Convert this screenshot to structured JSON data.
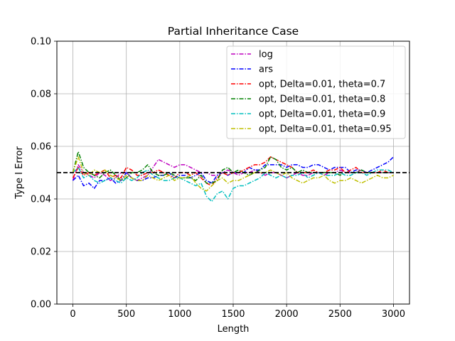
{
  "chart_data": {
    "type": "line",
    "title": "Partial Inheritance Case",
    "xlabel": "Length",
    "ylabel": "Type I Error",
    "xlim": [
      -150,
      3150
    ],
    "ylim": [
      0,
      0.1
    ],
    "xticks": [
      0,
      500,
      1000,
      1500,
      2000,
      2500,
      3000
    ],
    "xtick_labels": [
      "0",
      "500",
      "1000",
      "1500",
      "2000",
      "2500",
      "3000"
    ],
    "yticks": [
      0,
      0.02,
      0.04,
      0.06,
      0.08,
      0.1
    ],
    "ytick_labels": [
      "0.00",
      "0.02",
      "0.04",
      "0.06",
      "0.08",
      "0.10"
    ],
    "grid": true,
    "legend_position": "top-right",
    "reference_line": {
      "y": 0.05,
      "style": "dashed",
      "color": "#000000"
    },
    "x": [
      0,
      50,
      100,
      150,
      200,
      250,
      300,
      350,
      400,
      450,
      500,
      550,
      600,
      650,
      700,
      750,
      800,
      850,
      900,
      950,
      1000,
      1050,
      1100,
      1150,
      1200,
      1250,
      1300,
      1350,
      1400,
      1450,
      1500,
      1550,
      1600,
      1650,
      1700,
      1750,
      1800,
      1850,
      1900,
      1950,
      2000,
      2050,
      2100,
      2150,
      2200,
      2250,
      2300,
      2350,
      2400,
      2450,
      2500,
      2550,
      2600,
      2650,
      2700,
      2750,
      2800,
      2850,
      2900,
      2950,
      3000
    ],
    "series": [
      {
        "name": "log",
        "color": "#bf00bf",
        "values": [
          0.047,
          0.053,
          0.05,
          0.049,
          0.048,
          0.05,
          0.049,
          0.047,
          0.048,
          0.05,
          0.05,
          0.048,
          0.047,
          0.048,
          0.049,
          0.052,
          0.055,
          0.054,
          0.053,
          0.052,
          0.053,
          0.053,
          0.052,
          0.051,
          0.05,
          0.05,
          0.049,
          0.049,
          0.05,
          0.051,
          0.05,
          0.049,
          0.05,
          0.05,
          0.051,
          0.05,
          0.049,
          0.05,
          0.05,
          0.049,
          0.048,
          0.049,
          0.05,
          0.049,
          0.049,
          0.05,
          0.05,
          0.049,
          0.05,
          0.05,
          0.051,
          0.05,
          0.05,
          0.05,
          0.051,
          0.05,
          0.05,
          0.05,
          0.05,
          0.05,
          0.05
        ]
      },
      {
        "name": "ars",
        "color": "#0000ff",
        "values": [
          0.047,
          0.049,
          0.045,
          0.046,
          0.044,
          0.047,
          0.047,
          0.048,
          0.046,
          0.047,
          0.05,
          0.048,
          0.047,
          0.047,
          0.048,
          0.048,
          0.049,
          0.049,
          0.05,
          0.048,
          0.049,
          0.049,
          0.048,
          0.049,
          0.05,
          0.047,
          0.046,
          0.049,
          0.05,
          0.049,
          0.05,
          0.05,
          0.05,
          0.052,
          0.051,
          0.051,
          0.053,
          0.053,
          0.053,
          0.053,
          0.052,
          0.053,
          0.053,
          0.052,
          0.052,
          0.053,
          0.053,
          0.052,
          0.051,
          0.052,
          0.052,
          0.052,
          0.05,
          0.051,
          0.051,
          0.05,
          0.051,
          0.052,
          0.053,
          0.054,
          0.056
        ]
      },
      {
        "name": "opt, Delta=0.01, theta=0.7",
        "color": "#ff0000",
        "values": [
          0.048,
          0.052,
          0.049,
          0.05,
          0.049,
          0.05,
          0.051,
          0.048,
          0.049,
          0.048,
          0.052,
          0.051,
          0.049,
          0.049,
          0.05,
          0.05,
          0.051,
          0.05,
          0.049,
          0.048,
          0.05,
          0.05,
          0.049,
          0.05,
          0.048,
          0.046,
          0.045,
          0.048,
          0.05,
          0.049,
          0.05,
          0.05,
          0.051,
          0.052,
          0.053,
          0.053,
          0.054,
          0.056,
          0.055,
          0.054,
          0.053,
          0.052,
          0.05,
          0.05,
          0.05,
          0.051,
          0.05,
          0.05,
          0.051,
          0.051,
          0.052,
          0.05,
          0.051,
          0.052,
          0.05,
          0.05,
          0.05,
          0.05,
          0.051,
          0.05,
          0.05
        ]
      },
      {
        "name": "opt, Delta=0.01, theta=0.8",
        "color": "#008000",
        "values": [
          0.05,
          0.058,
          0.052,
          0.05,
          0.049,
          0.048,
          0.05,
          0.051,
          0.049,
          0.047,
          0.048,
          0.05,
          0.05,
          0.051,
          0.053,
          0.05,
          0.049,
          0.049,
          0.05,
          0.049,
          0.048,
          0.048,
          0.048,
          0.047,
          0.049,
          0.046,
          0.046,
          0.047,
          0.051,
          0.052,
          0.05,
          0.051,
          0.05,
          0.049,
          0.05,
          0.051,
          0.052,
          0.056,
          0.055,
          0.052,
          0.051,
          0.052,
          0.05,
          0.051,
          0.05,
          0.05,
          0.05,
          0.05,
          0.05,
          0.05,
          0.049,
          0.05,
          0.05,
          0.05,
          0.051,
          0.05,
          0.05,
          0.05,
          0.05,
          0.05,
          0.05
        ]
      },
      {
        "name": "opt, Delta=0.01, theta=0.9",
        "color": "#00bfbf",
        "values": [
          0.05,
          0.052,
          0.048,
          0.049,
          0.047,
          0.046,
          0.047,
          0.048,
          0.047,
          0.046,
          0.048,
          0.047,
          0.048,
          0.05,
          0.051,
          0.049,
          0.048,
          0.047,
          0.047,
          0.048,
          0.048,
          0.047,
          0.046,
          0.045,
          0.046,
          0.041,
          0.039,
          0.042,
          0.043,
          0.04,
          0.044,
          0.045,
          0.045,
          0.046,
          0.047,
          0.048,
          0.05,
          0.049,
          0.048,
          0.049,
          0.048,
          0.049,
          0.049,
          0.05,
          0.048,
          0.049,
          0.05,
          0.049,
          0.049,
          0.049,
          0.05,
          0.049,
          0.049,
          0.05,
          0.05,
          0.049,
          0.05,
          0.051,
          0.051,
          0.051,
          0.05
        ]
      },
      {
        "name": "opt, Delta=0.01, theta=0.95",
        "color": "#bfbf00",
        "values": [
          0.05,
          0.056,
          0.05,
          0.049,
          0.051,
          0.05,
          0.051,
          0.049,
          0.048,
          0.047,
          0.049,
          0.048,
          0.047,
          0.047,
          0.049,
          0.048,
          0.047,
          0.048,
          0.049,
          0.047,
          0.048,
          0.048,
          0.049,
          0.046,
          0.044,
          0.043,
          0.045,
          0.047,
          0.048,
          0.046,
          0.047,
          0.047,
          0.048,
          0.049,
          0.05,
          0.05,
          0.05,
          0.051,
          0.05,
          0.049,
          0.05,
          0.048,
          0.047,
          0.046,
          0.047,
          0.048,
          0.048,
          0.049,
          0.047,
          0.046,
          0.047,
          0.047,
          0.048,
          0.047,
          0.046,
          0.047,
          0.048,
          0.049,
          0.048,
          0.048,
          0.049
        ]
      }
    ]
  }
}
